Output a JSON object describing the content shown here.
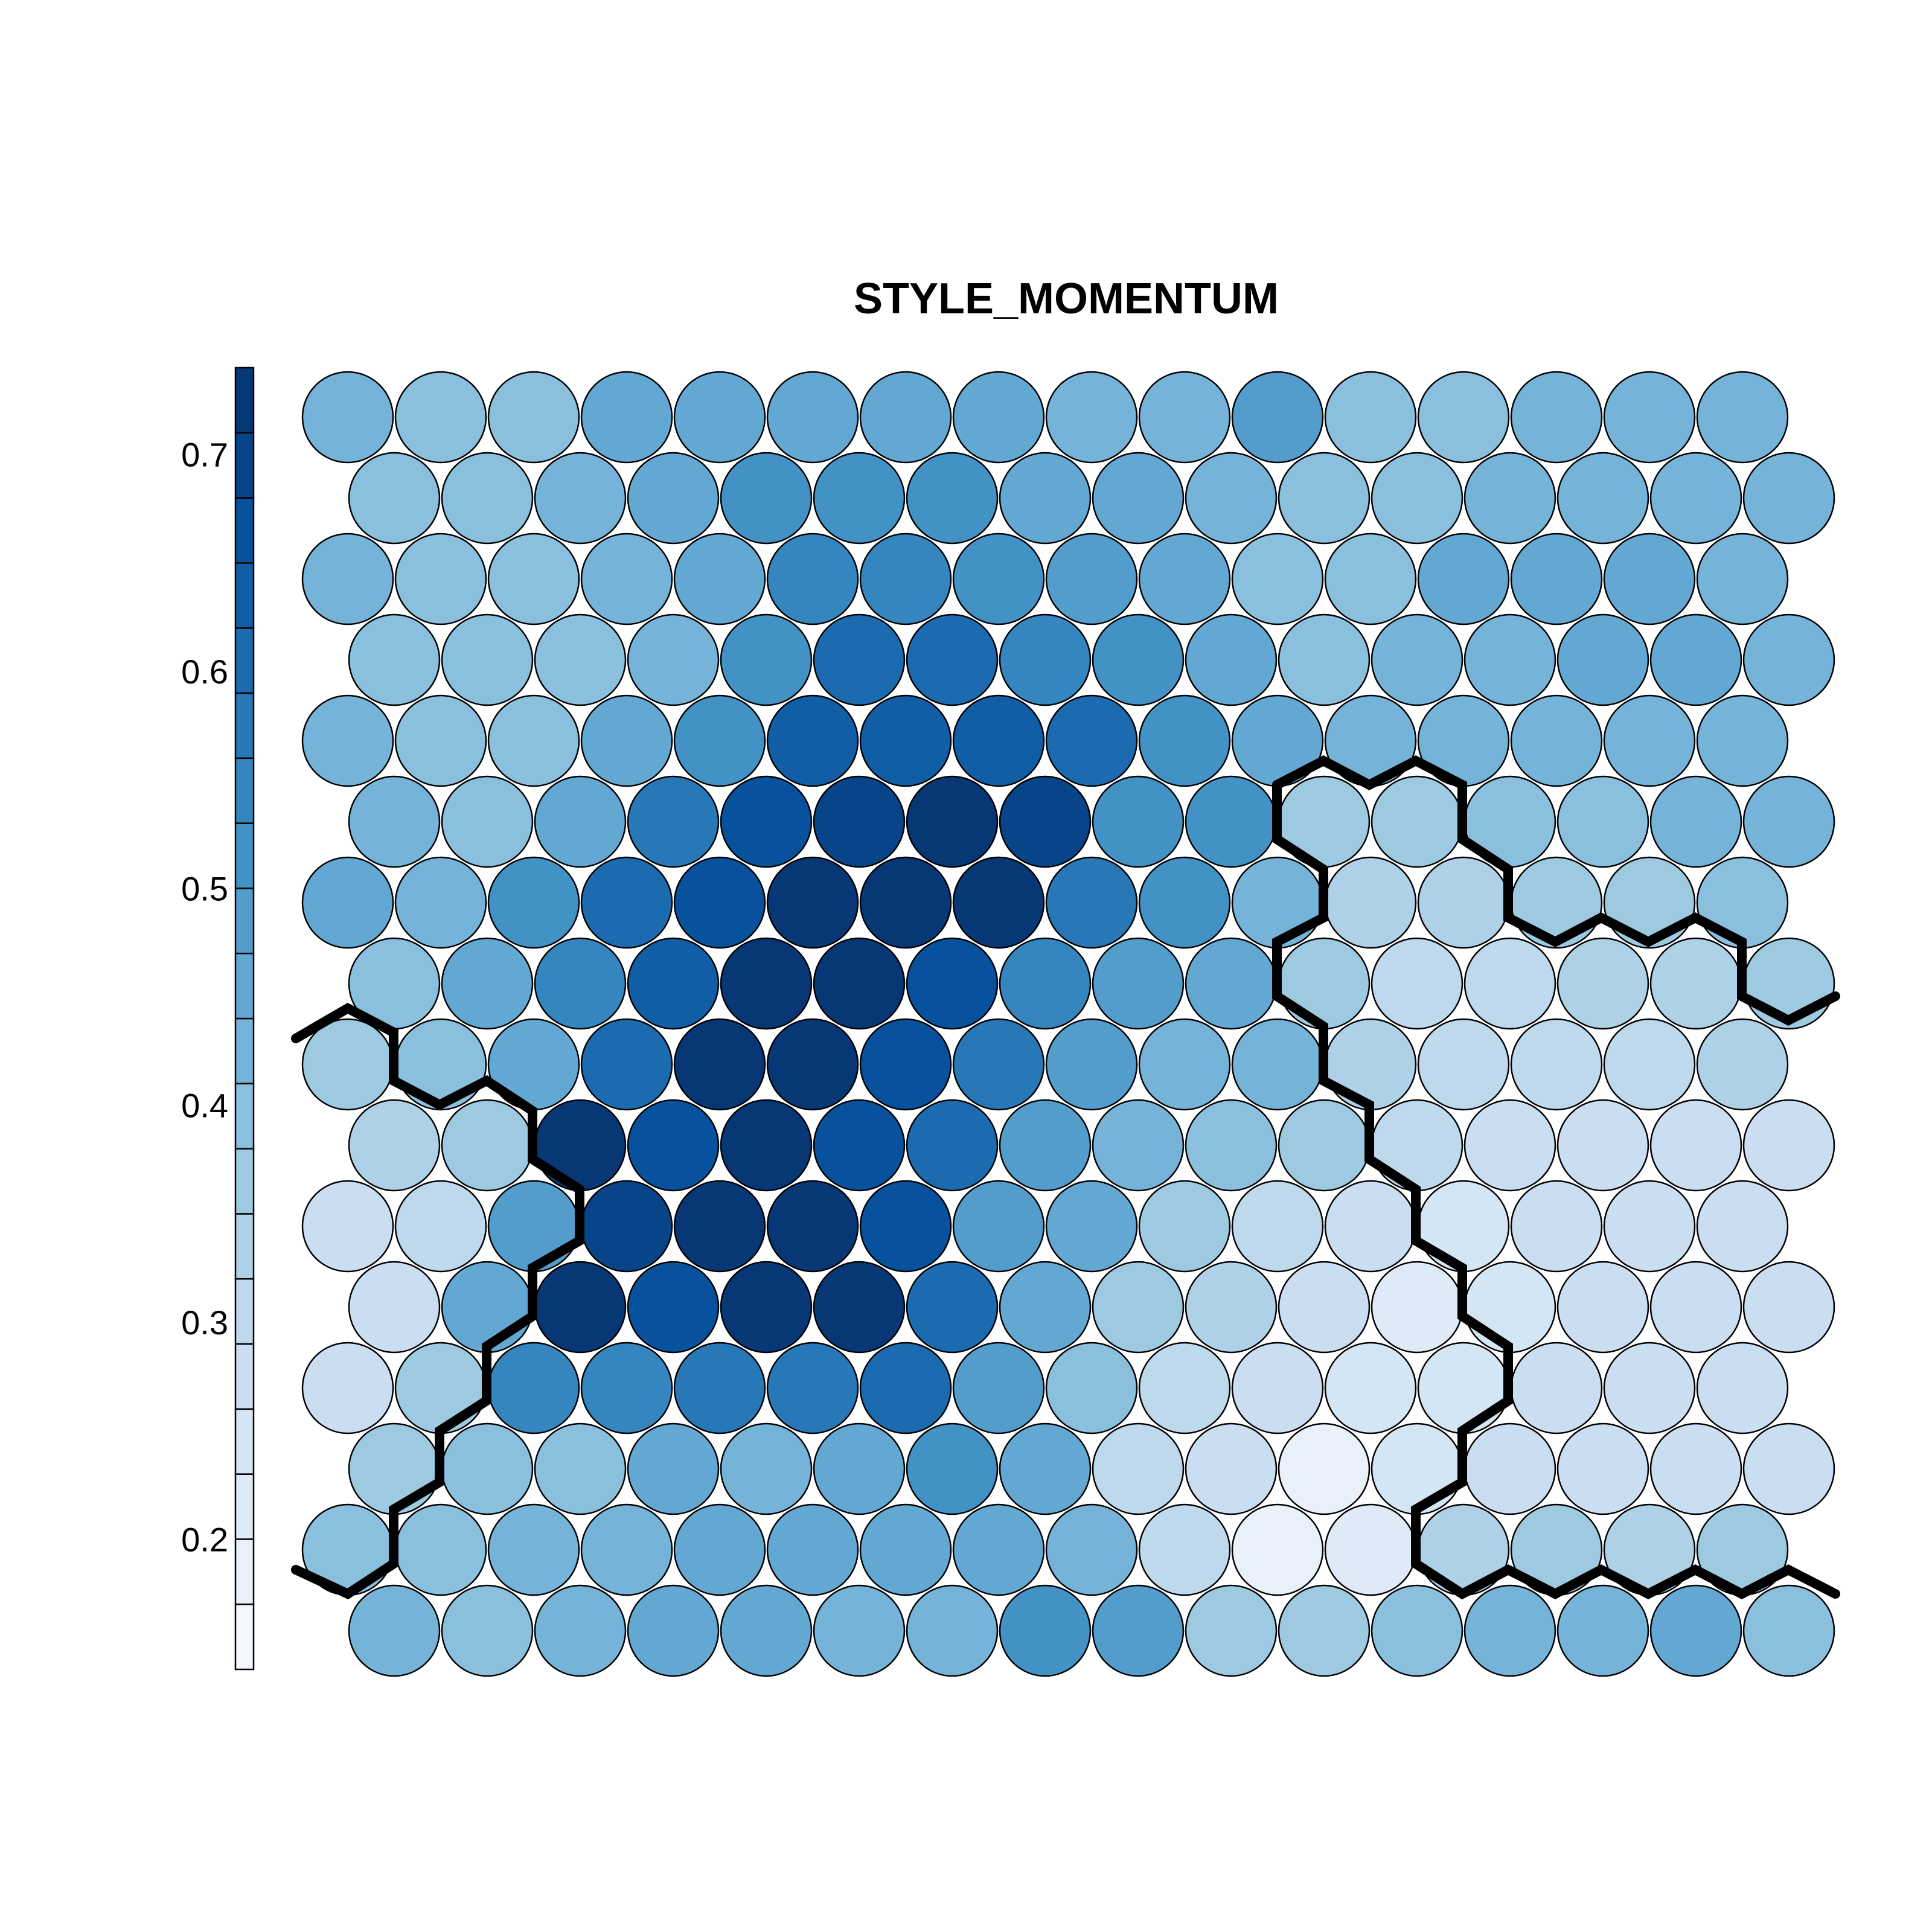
{
  "chart_data": {
    "type": "heatmap",
    "title": "STYLE_MOMENTUM",
    "grid": {
      "columns": 16,
      "rows": 16,
      "topology": "hexagonal"
    },
    "color_scale": {
      "min": 0.14,
      "max": 0.74,
      "steps": 20,
      "low_color": "#f7fbff",
      "high_color": "#08306b",
      "ticks": [
        {
          "value": 0.2,
          "label": "0.2"
        },
        {
          "value": 0.3,
          "label": "0.3"
        },
        {
          "value": 0.4,
          "label": "0.4"
        },
        {
          "value": 0.5,
          "label": "0.5"
        },
        {
          "value": 0.6,
          "label": "0.6"
        },
        {
          "value": 0.7,
          "label": "0.7"
        }
      ]
    },
    "values": [
      [
        0.41,
        0.4,
        0.4,
        0.46,
        0.46,
        0.44,
        0.46,
        0.47,
        0.42,
        0.42,
        0.48,
        0.4,
        0.4,
        0.43,
        0.43,
        0.42
      ],
      [
        0.4,
        0.39,
        0.41,
        0.46,
        0.51,
        0.51,
        0.5,
        0.44,
        0.44,
        0.43,
        0.4,
        0.4,
        0.42,
        0.42,
        0.43,
        0.42
      ],
      [
        0.41,
        0.4,
        0.4,
        0.41,
        0.44,
        0.53,
        0.55,
        0.52,
        0.49,
        0.46,
        0.4,
        0.4,
        0.44,
        0.45,
        0.45,
        0.43
      ],
      [
        0.4,
        0.39,
        0.38,
        0.42,
        0.5,
        0.59,
        0.6,
        0.55,
        0.5,
        0.44,
        0.4,
        0.43,
        0.43,
        0.45,
        0.45,
        0.43
      ],
      [
        0.43,
        0.39,
        0.38,
        0.46,
        0.5,
        0.62,
        0.63,
        0.63,
        0.6,
        0.52,
        0.46,
        0.42,
        0.43,
        0.42,
        0.42,
        0.42
      ],
      [
        0.43,
        0.39,
        0.45,
        0.58,
        0.67,
        0.68,
        0.71,
        0.68,
        0.52,
        0.52,
        0.36,
        0.36,
        0.39,
        0.39,
        0.42,
        0.42
      ],
      [
        0.44,
        0.42,
        0.5,
        0.6,
        0.66,
        0.71,
        0.71,
        0.71,
        0.56,
        0.51,
        0.43,
        0.33,
        0.33,
        0.36,
        0.36,
        0.39
      ],
      [
        0.39,
        0.46,
        0.55,
        0.62,
        0.71,
        0.71,
        0.67,
        0.55,
        0.48,
        0.45,
        0.35,
        0.31,
        0.3,
        0.33,
        0.33,
        0.36
      ],
      [
        0.35,
        0.38,
        0.47,
        0.59,
        0.71,
        0.71,
        0.67,
        0.56,
        0.48,
        0.42,
        0.42,
        0.33,
        0.3,
        0.3,
        0.3,
        0.33
      ],
      [
        0.33,
        0.37,
        0.71,
        0.67,
        0.71,
        0.67,
        0.59,
        0.48,
        0.42,
        0.38,
        0.36,
        0.3,
        0.28,
        0.27,
        0.27,
        0.28
      ],
      [
        0.28,
        0.3,
        0.49,
        0.68,
        0.71,
        0.71,
        0.67,
        0.49,
        0.45,
        0.36,
        0.31,
        0.28,
        0.24,
        0.26,
        0.27,
        0.27
      ],
      [
        0.27,
        0.45,
        0.71,
        0.67,
        0.71,
        0.71,
        0.6,
        0.46,
        0.37,
        0.34,
        0.26,
        0.21,
        0.25,
        0.26,
        0.26,
        0.26
      ],
      [
        0.29,
        0.37,
        0.53,
        0.55,
        0.56,
        0.56,
        0.61,
        0.48,
        0.4,
        0.3,
        0.26,
        0.24,
        0.24,
        0.26,
        0.26,
        0.26
      ],
      [
        0.37,
        0.38,
        0.4,
        0.44,
        0.43,
        0.47,
        0.5,
        0.44,
        0.3,
        0.26,
        0.19,
        0.23,
        0.28,
        0.28,
        0.27,
        0.28
      ],
      [
        0.38,
        0.4,
        0.42,
        0.43,
        0.46,
        0.46,
        0.45,
        0.46,
        0.43,
        0.3,
        0.19,
        0.22,
        0.34,
        0.35,
        0.34,
        0.35
      ],
      [
        0.42,
        0.4,
        0.42,
        0.46,
        0.44,
        0.43,
        0.43,
        0.5,
        0.48,
        0.36,
        0.36,
        0.4,
        0.42,
        0.43,
        0.46,
        0.4
      ]
    ],
    "cluster_boundaries": true
  }
}
